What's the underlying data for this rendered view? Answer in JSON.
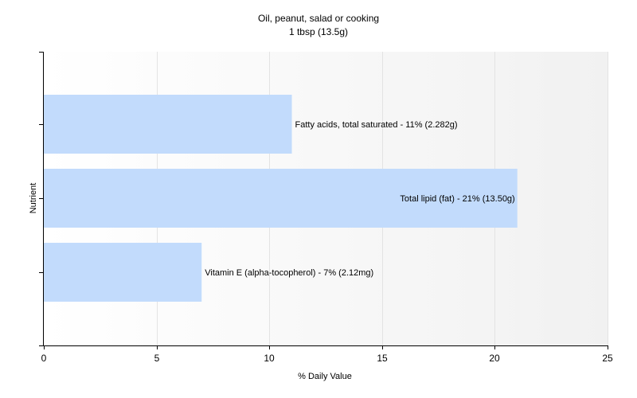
{
  "chart_data": {
    "type": "bar",
    "orientation": "horizontal",
    "title": "Oil, peanut, salad or cooking",
    "subtitle": "1 tbsp (13.5g)",
    "xlabel": "% Daily Value",
    "ylabel": "Nutrient",
    "xlim": [
      0,
      25
    ],
    "xticks": [
      "0",
      "5",
      "10",
      "15",
      "20",
      "25"
    ],
    "grid": true,
    "legend": "none",
    "bar_color": "#c2dbfc",
    "categories": [
      "Fatty acids, total saturated",
      "Total lipid (fat)",
      "Vitamin E (alpha-tocopherol)"
    ],
    "values": [
      11,
      21,
      7
    ],
    "data_labels": [
      "Fatty acids, total saturated - 11% (2.282g)",
      "Total lipid (fat) - 21% (13.50g)",
      "Vitamin E (alpha-tocopherol) - 7% (2.12mg)"
    ]
  }
}
